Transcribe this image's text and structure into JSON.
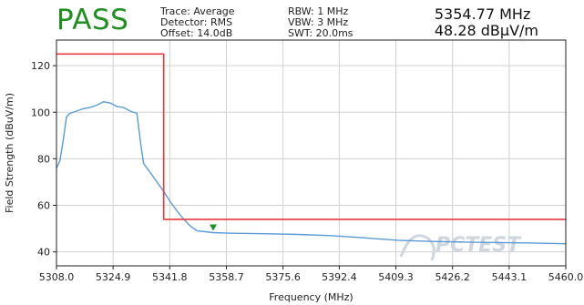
{
  "header": {
    "verdict": "PASS",
    "trace": "Trace: Average",
    "detector": "Detector: RMS",
    "offset": "Offset: 14.0dB",
    "rbw": "RBW: 1 MHz",
    "vbw": "VBW: 3 MHz",
    "swt": "SWT: 20.0ms",
    "marker_freq": "5354.77 MHz",
    "marker_level": "48.28 dBµV/m",
    "verdict_color": "#1f8f1f"
  },
  "watermark": "PCTEST",
  "chart_data": {
    "type": "line",
    "title": "",
    "xlabel": "Frequency (MHz)",
    "ylabel": "Field Strength (dBuV/m)",
    "xlim": [
      5308.0,
      5460.0
    ],
    "ylim": [
      34,
      131
    ],
    "x_ticks": [
      "5308.0",
      "5324.9",
      "5341.8",
      "5358.7",
      "5375.6",
      "5392.4",
      "5409.3",
      "5426.2",
      "5443.1",
      "5460.0"
    ],
    "y_ticks": [
      40,
      60,
      80,
      100,
      120
    ],
    "grid": true,
    "series": [
      {
        "color": "#5b9bd5",
        "x": [
          5308.0,
          5309.0,
          5310.0,
          5311.0,
          5312.0,
          5314.0,
          5316.0,
          5318.0,
          5320.0,
          5322.0,
          5324.0,
          5326.0,
          5328.0,
          5330.0,
          5332.0,
          5333.0,
          5334.0,
          5336.0,
          5338.0,
          5340.0,
          5342.0,
          5344.0,
          5346.0,
          5348.0,
          5350.0,
          5354.77,
          5360.0,
          5370.0,
          5380.0,
          5390.0,
          5400.0,
          5410.0,
          5420.0,
          5430.0,
          5440.0,
          5450.0,
          5460.0
        ],
        "y": [
          76,
          79,
          88,
          98,
          99.5,
          100.5,
          101.5,
          102,
          103,
          104.5,
          104,
          102.5,
          102,
          100.5,
          99.5,
          88,
          78,
          74,
          70,
          66,
          61.5,
          57.5,
          54,
          51,
          49,
          48.28,
          48,
          47.8,
          47.5,
          47,
          46,
          45,
          44.5,
          44.2,
          44,
          43.8,
          43.5
        ]
      },
      {
        "color": "#e8383d",
        "x": [
          5308.0,
          5340.0,
          5340.0,
          5460.0
        ],
        "y": [
          125,
          125,
          54,
          54
        ]
      }
    ],
    "marker": {
      "x": 5354.77,
      "y": 48.28,
      "color": "#1f8f1f"
    }
  }
}
